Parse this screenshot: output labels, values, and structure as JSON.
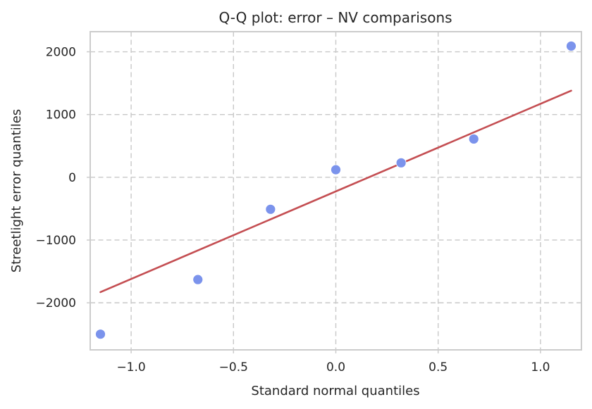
{
  "chart_data": {
    "type": "scatter",
    "title": "Q-Q plot: error – NV comparisons",
    "xlabel": "Standard normal quantiles",
    "ylabel": "Streetlight error quantiles",
    "xlim": [
      -1.2,
      1.2
    ],
    "ylim": [
      -2750,
      2320
    ],
    "xticks": [
      -1.0,
      -0.5,
      0.0,
      0.5,
      1.0
    ],
    "xtick_labels": [
      "−1.0",
      "−0.5",
      "0.0",
      "0.5",
      "1.0"
    ],
    "yticks": [
      2000,
      1000,
      0,
      -1000,
      -2000
    ],
    "ytick_labels": [
      "2000",
      "1000",
      "0",
      "−1000",
      "−2000"
    ],
    "grid": true,
    "points": {
      "x": [
        -1.15,
        -0.674,
        -0.319,
        0.0,
        0.319,
        0.674,
        1.15
      ],
      "y": [
        -2500,
        -1630,
        -510,
        120,
        230,
        610,
        2090
      ],
      "color": "#7b93ec"
    },
    "fit_line": {
      "x": [
        -1.15,
        1.15
      ],
      "y": [
        -1830,
        1380
      ],
      "color": "#c44e52"
    }
  }
}
